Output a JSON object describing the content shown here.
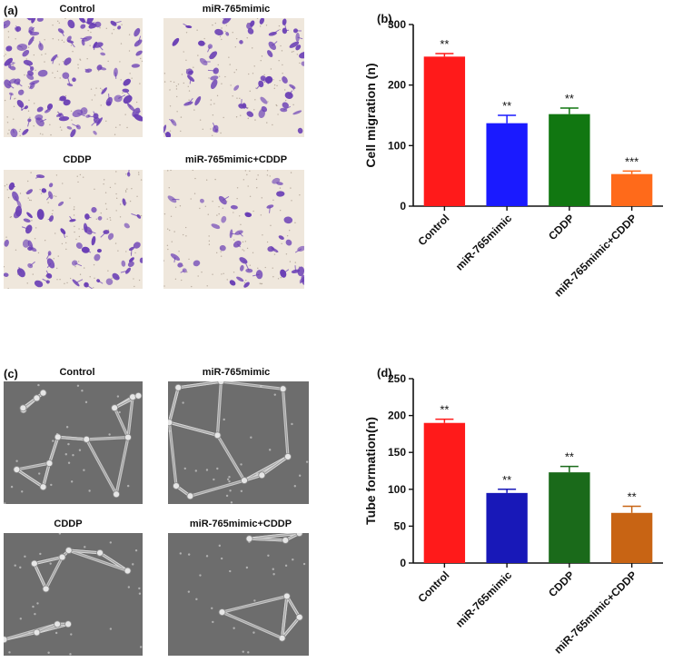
{
  "panel_a": {
    "letter": "(a)",
    "images": [
      {
        "label": "Control"
      },
      {
        "label": "miR-765mimic"
      },
      {
        "label": "CDDP"
      },
      {
        "label": "miR-765mimic+CDDP"
      }
    ],
    "stain_color": "#6a3fb5",
    "background_color": "#efe7dc"
  },
  "panel_c": {
    "letter": "(c)",
    "images": [
      {
        "label": "Control"
      },
      {
        "label": "miR-765mimic"
      },
      {
        "label": "CDDP"
      },
      {
        "label": "miR-765mimic+CDDP"
      }
    ],
    "background_color": "#6d6d6d"
  },
  "chart_data": [
    {
      "letter": "(b)",
      "type": "bar",
      "ylabel": "Cell migration (n)",
      "xlabel": "",
      "ylim": [
        0,
        300
      ],
      "yticks": [
        0,
        100,
        200,
        300
      ],
      "grid": false,
      "categories": [
        "Control",
        "miR-765mimic",
        "CDDP",
        "miR-765mimic+CDDP"
      ],
      "values": [
        247,
        137,
        152,
        53
      ],
      "errors": [
        5,
        13,
        10,
        5
      ],
      "significance": [
        "**",
        "**",
        "**",
        "***"
      ],
      "colors": [
        "#ff1a1a",
        "#1a1aff",
        "#117711",
        "#ff6a1a"
      ]
    },
    {
      "letter": "(d)",
      "type": "bar",
      "ylabel": "Tube formation(n)",
      "xlabel": "",
      "ylim": [
        0,
        250
      ],
      "yticks": [
        0,
        50,
        100,
        150,
        200,
        250
      ],
      "grid": false,
      "categories": [
        "Control",
        "miR-765mimic",
        "CDDP",
        "miR-765mimic+CDDP"
      ],
      "values": [
        190,
        95,
        123,
        68
      ],
      "errors": [
        5,
        5,
        8,
        9
      ],
      "significance": [
        "**",
        "**",
        "**",
        "**"
      ],
      "colors": [
        "#ff1a1a",
        "#1818b8",
        "#1a6a1a",
        "#c86414"
      ]
    }
  ]
}
